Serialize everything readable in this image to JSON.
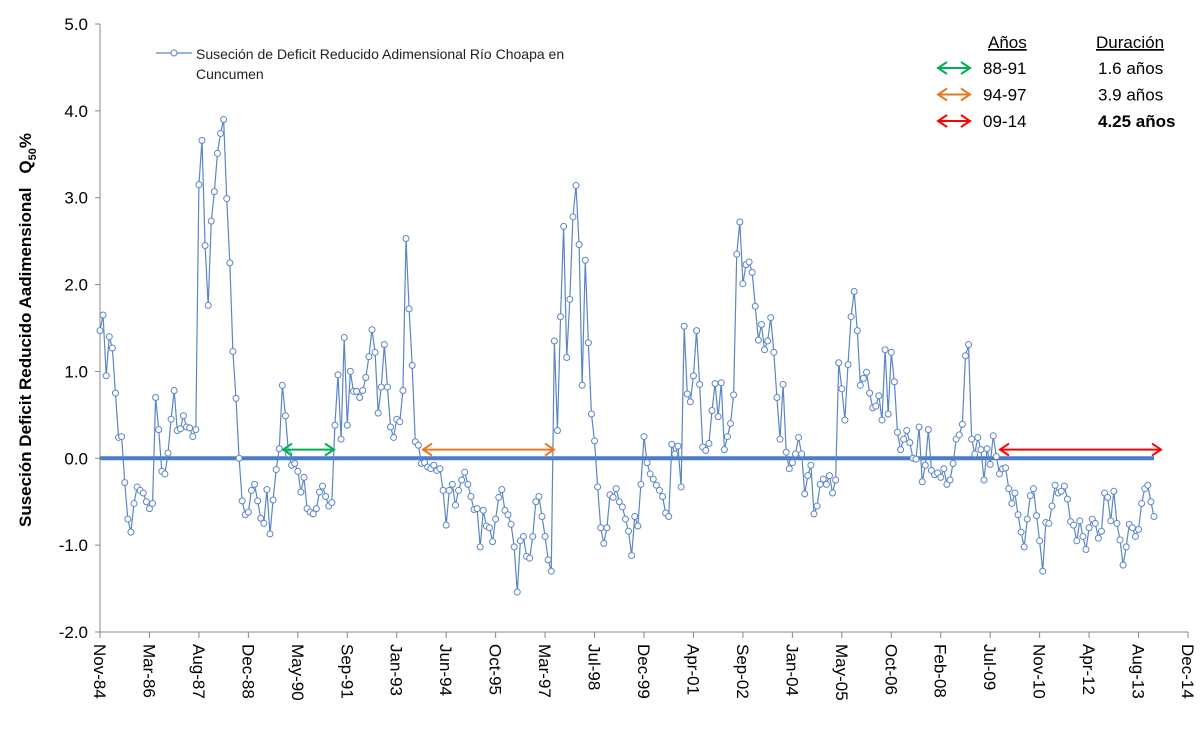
{
  "chart_data": {
    "type": "line",
    "ylabel": "Suseción  Deficit  Reducido Aadimensional",
    "ylabel_symbol": "Q",
    "ylabel_subscript": "50",
    "ylabel_suffix": "%",
    "categories": [
      "Nov-84",
      null,
      null,
      null,
      null,
      null,
      null,
      null,
      null,
      null,
      null,
      null,
      null,
      null,
      null,
      null,
      "Mar-86",
      null,
      null,
      null,
      null,
      null,
      null,
      null,
      null,
      null,
      null,
      null,
      null,
      null,
      null,
      null,
      "Aug-87",
      null,
      null,
      null,
      null,
      null,
      null,
      null,
      null,
      null,
      null,
      null,
      null,
      null,
      null,
      null,
      "Dec-88",
      null,
      null,
      null,
      null,
      null,
      null,
      null,
      null,
      null,
      null,
      null,
      null,
      null,
      null,
      null,
      "May-90",
      null,
      null,
      null,
      null,
      null,
      null,
      null,
      null,
      null,
      null,
      null,
      null,
      null,
      null,
      null,
      "Sep-91",
      null,
      null,
      null,
      null,
      null,
      null,
      null,
      null,
      null,
      null,
      null,
      null,
      null,
      null,
      null,
      "Jan-93",
      null,
      null,
      null,
      null,
      null,
      null,
      null,
      null,
      null,
      null,
      null,
      null,
      null,
      null,
      null,
      "Jun-94",
      null,
      null,
      null,
      null,
      null,
      null,
      null,
      null,
      null,
      null,
      null,
      null,
      null,
      null,
      null,
      "Oct-95",
      null,
      null,
      null,
      null,
      null,
      null,
      null,
      null,
      null,
      null,
      null,
      null,
      null,
      null,
      null,
      "Mar-97",
      null,
      null,
      null,
      null,
      null,
      null,
      null,
      null,
      null,
      null,
      null,
      null,
      null,
      null,
      null,
      "Jul-98",
      null,
      null,
      null,
      null,
      null,
      null,
      null,
      null,
      null,
      null,
      null,
      null,
      null,
      null,
      null,
      "Dec-99",
      null,
      null,
      null,
      null,
      null,
      null,
      null,
      null,
      null,
      null,
      null,
      null,
      null,
      null,
      null,
      "Apr-01",
      null,
      null,
      null,
      null,
      null,
      null,
      null,
      null,
      null,
      null,
      null,
      null,
      null,
      null,
      null,
      "Sep-02",
      null,
      null,
      null,
      null,
      null,
      null,
      null,
      null,
      null,
      null,
      null,
      null,
      null,
      null,
      null,
      "Jan-04",
      null,
      null,
      null,
      null,
      null,
      null,
      null,
      null,
      null,
      null,
      null,
      null,
      null,
      null,
      null,
      "May-05",
      null,
      null,
      null,
      null,
      null,
      null,
      null,
      null,
      null,
      null,
      null,
      null,
      null,
      null,
      null,
      "Oct-06",
      null,
      null,
      null,
      null,
      null,
      null,
      null,
      null,
      null,
      null,
      null,
      null,
      null,
      null,
      null,
      "Feb-08",
      null,
      null,
      null,
      null,
      null,
      null,
      null,
      null,
      null,
      null,
      null,
      null,
      null,
      null,
      null,
      "Jul-09",
      null,
      null,
      null,
      null,
      null,
      null,
      null,
      null,
      null,
      null,
      null,
      null,
      null,
      null,
      null,
      "Nov-10",
      null,
      null,
      null,
      null,
      null,
      null,
      null,
      null,
      null,
      null,
      null,
      null,
      null,
      null,
      null,
      "Apr-12",
      null,
      null,
      null,
      null,
      null,
      null,
      null,
      null,
      null,
      null,
      null,
      null,
      null,
      null,
      null,
      "Aug-13",
      null,
      null,
      null,
      null,
      null,
      null,
      null,
      null,
      null,
      null,
      null,
      null,
      null,
      null,
      null,
      "Dec-14"
    ],
    "series": [
      {
        "name": "Suseción de Deficit Reducido Adimensional Río Choapa en Cuncumen",
        "color": "#5b86c5",
        "values": [
          1.47,
          1.65,
          0.95,
          1.4,
          1.27,
          0.75,
          0.24,
          0.25,
          -0.28,
          -0.7,
          -0.85,
          -0.52,
          -0.33,
          -0.37,
          -0.4,
          -0.5,
          -0.58,
          -0.52,
          0.7,
          0.33,
          -0.15,
          -0.18,
          0.06,
          0.45,
          0.78,
          0.32,
          0.34,
          0.49,
          0.36,
          0.35,
          0.25,
          0.33,
          3.15,
          3.66,
          2.45,
          1.76,
          2.73,
          3.07,
          3.51,
          3.74,
          3.9,
          2.99,
          2.25,
          1.23,
          0.69,
          0.0,
          -0.49,
          -0.65,
          -0.62,
          -0.37,
          -0.3,
          -0.49,
          -0.69,
          -0.75,
          -0.36,
          -0.87,
          -0.48,
          -0.13,
          0.11,
          0.84,
          0.49,
          0.05,
          -0.08,
          -0.06,
          -0.15,
          -0.39,
          -0.22,
          -0.58,
          -0.62,
          -0.64,
          -0.58,
          -0.39,
          -0.32,
          -0.44,
          -0.55,
          -0.51,
          0.38,
          0.96,
          0.22,
          1.39,
          0.38,
          1.0,
          0.77,
          0.77,
          0.7,
          0.78,
          0.93,
          1.17,
          1.48,
          1.22,
          0.52,
          0.82,
          1.31,
          0.82,
          0.36,
          0.24,
          0.45,
          0.42,
          0.78,
          2.53,
          1.72,
          1.07,
          0.19,
          0.15,
          -0.06,
          -0.05,
          -0.1,
          -0.12,
          -0.08,
          -0.14,
          -0.12,
          -0.37,
          -0.77,
          -0.37,
          -0.3,
          -0.54,
          -0.37,
          -0.25,
          -0.16,
          -0.3,
          -0.44,
          -0.59,
          -0.58,
          -1.02,
          -0.6,
          -0.78,
          -0.8,
          -0.96,
          -0.7,
          -0.45,
          -0.36,
          -0.6,
          -0.65,
          -0.76,
          -1.02,
          -1.54,
          -0.95,
          -0.9,
          -1.13,
          -1.15,
          -0.9,
          -0.5,
          -0.44,
          -0.67,
          -0.9,
          -1.17,
          -1.3,
          1.35,
          0.32,
          1.63,
          2.67,
          1.16,
          1.83,
          2.78,
          3.14,
          2.46,
          0.84,
          2.28,
          1.33,
          0.51,
          0.2,
          -0.33,
          -0.8,
          -0.98,
          -0.8,
          -0.42,
          -0.45,
          -0.35,
          -0.5,
          -0.56,
          -0.7,
          -0.84,
          -1.12,
          -0.67,
          -0.78,
          -0.3,
          0.25,
          -0.05,
          -0.18,
          -0.24,
          -0.31,
          -0.37,
          -0.44,
          -0.63,
          -0.67,
          0.16,
          0.05,
          0.14,
          -0.33,
          1.52,
          0.74,
          0.65,
          0.95,
          1.47,
          0.85,
          0.13,
          0.09,
          0.17,
          0.55,
          0.86,
          0.48,
          0.87,
          0.1,
          0.25,
          0.4,
          0.73,
          2.35,
          2.72,
          2.01,
          2.23,
          2.26,
          2.14,
          1.75,
          1.36,
          1.54,
          1.25,
          1.35,
          1.62,
          1.22,
          0.7,
          0.22,
          0.85,
          0.07,
          -0.12,
          -0.05,
          0.05,
          0.24,
          0.05,
          -0.41,
          -0.2,
          -0.08,
          -0.64,
          -0.55,
          -0.3,
          -0.24,
          -0.3,
          -0.2,
          -0.4,
          -0.25,
          1.1,
          0.8,
          0.44,
          1.08,
          1.63,
          1.92,
          1.47,
          0.84,
          0.92,
          0.99,
          0.75,
          0.58,
          0.6,
          0.72,
          0.44,
          1.25,
          0.51,
          1.22,
          0.88,
          0.3,
          0.1,
          0.22,
          0.32,
          0.18,
          0.0,
          -0.01,
          0.36,
          -0.27,
          -0.08,
          0.33,
          -0.14,
          -0.19,
          -0.17,
          -0.22,
          -0.12,
          -0.3,
          -0.25,
          -0.06,
          0.22,
          0.27,
          0.39,
          1.18,
          1.31,
          0.22,
          0.05,
          0.24,
          0.1,
          -0.25,
          0.11,
          -0.07,
          0.26,
          0.02,
          -0.18,
          -0.12,
          -0.11,
          -0.35,
          -0.52,
          -0.4,
          -0.65,
          -0.85,
          -1.02,
          -0.7,
          -0.43,
          -0.35,
          -0.66,
          -0.95,
          -1.3,
          -0.74,
          -0.75,
          -0.55,
          -0.31,
          -0.4,
          -0.38,
          -0.32,
          -0.47,
          -0.73,
          -0.77,
          -0.95,
          -0.72,
          -0.9,
          -1.05,
          -0.8,
          -0.7,
          -0.75,
          -0.92,
          -0.84,
          -0.4,
          -0.45,
          -0.72,
          -0.38,
          -0.75,
          -0.94,
          -1.23,
          -1.02,
          -0.76,
          -0.8,
          -0.9,
          -0.82,
          -0.52,
          -0.35,
          -0.31,
          -0.5,
          -0.67,
          null,
          null,
          null,
          null,
          null,
          null,
          null,
          null,
          null,
          null,
          null
        ]
      }
    ],
    "reference_line": {
      "value": 0,
      "color": "#4a7cc7"
    },
    "ylim": [
      -2,
      5
    ],
    "yticks": [
      {
        "value": -2,
        "label": "-2.0"
      },
      {
        "value": -1,
        "label": "-1.0"
      },
      {
        "value": 0,
        "label": "0.0"
      },
      {
        "value": 1,
        "label": "1.0"
      },
      {
        "value": 2,
        "label": "2.0"
      },
      {
        "value": 3,
        "label": "3.0"
      },
      {
        "value": 4,
        "label": "4.0"
      },
      {
        "value": 5,
        "label": "5.0"
      }
    ],
    "legend": "upper left",
    "periods": {
      "header_period": "Años",
      "header_duration": "Duración",
      "rows": [
        {
          "period": "88-91",
          "duration": "1.6 años",
          "color": "#00b050",
          "bold": false
        },
        {
          "period": "94-97",
          "duration": "3.9 años",
          "color": "#e87722",
          "bold": false
        },
        {
          "period": "09-14",
          "duration": "4.25 años",
          "color": "#ff0000",
          "bold": true
        }
      ]
    }
  }
}
